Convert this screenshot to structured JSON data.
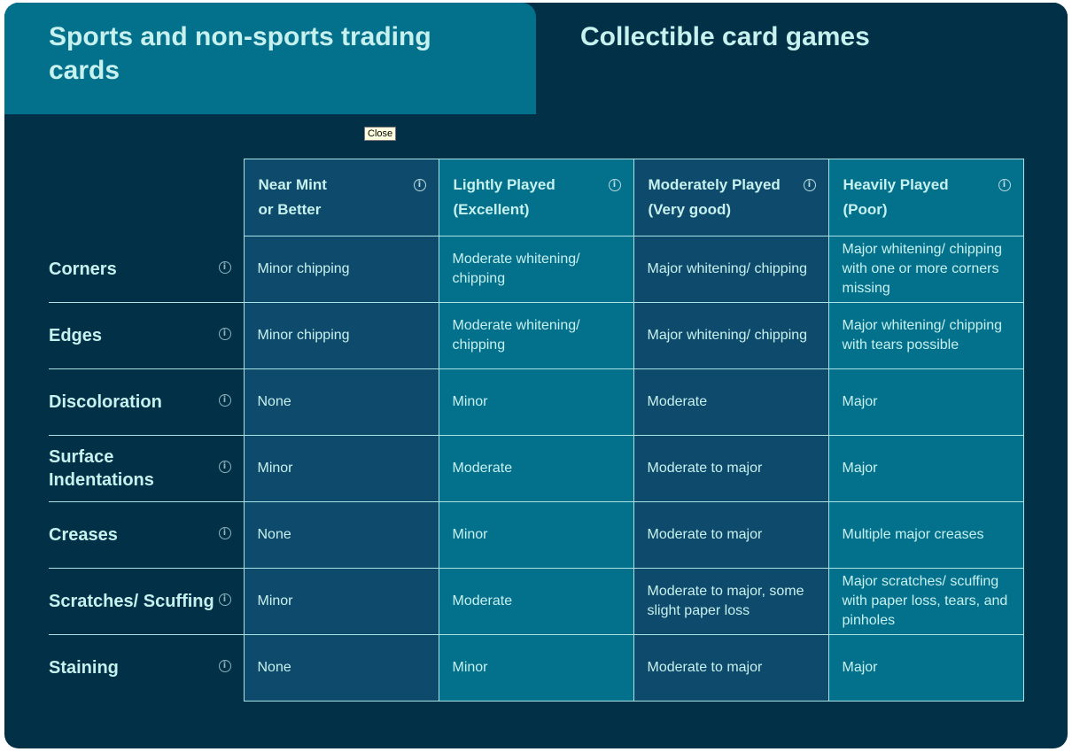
{
  "tabs": [
    {
      "label": "Sports and non-sports trading cards",
      "active": true
    },
    {
      "label": "Collectible card games",
      "active": false
    }
  ],
  "tooltip": "Close",
  "colors": {
    "background": "#023047",
    "active_tab": "#03708c",
    "dark_column": "#0e4a6b",
    "teal_column": "#03708c",
    "text": "#c7f1ee"
  },
  "columns": [
    {
      "line1": "Near Mint",
      "line2": "or Better",
      "icon": "info-icon"
    },
    {
      "line1": "Lightly Played",
      "line2": "(Excellent)",
      "icon": "info-icon"
    },
    {
      "line1": "Moderately Played",
      "line2": "(Very good)",
      "icon": "info-icon"
    },
    {
      "line1": "Heavily Played",
      "line2": "(Poor)",
      "icon": "info-icon"
    }
  ],
  "rows": [
    {
      "label": "Corners",
      "cells": [
        "Minor chipping",
        "Moderate whitening/ chipping",
        "Major whitening/ chipping",
        "Major whitening/ chipping with one or more corners missing"
      ]
    },
    {
      "label": "Edges",
      "cells": [
        "Minor chipping",
        "Moderate whitening/ chipping",
        "Major whitening/ chipping",
        "Major whitening/ chipping with tears possible"
      ]
    },
    {
      "label": "Discoloration",
      "cells": [
        "None",
        "Minor",
        "Moderate",
        "Major"
      ]
    },
    {
      "label": "Surface Indentations",
      "cells": [
        "Minor",
        "Moderate",
        "Moderate to major",
        "Major"
      ]
    },
    {
      "label": "Creases",
      "cells": [
        "None",
        "Minor",
        "Moderate to major",
        "Multiple major creases"
      ]
    },
    {
      "label": "Scratches/ Scuffing",
      "cells": [
        "Minor",
        "Moderate",
        "Moderate to major, some slight paper loss",
        "Major scratches/ scuffing with paper loss, tears, and pinholes"
      ]
    },
    {
      "label": "Staining",
      "cells": [
        "None",
        "Minor",
        "Moderate to major",
        "Major"
      ]
    }
  ]
}
